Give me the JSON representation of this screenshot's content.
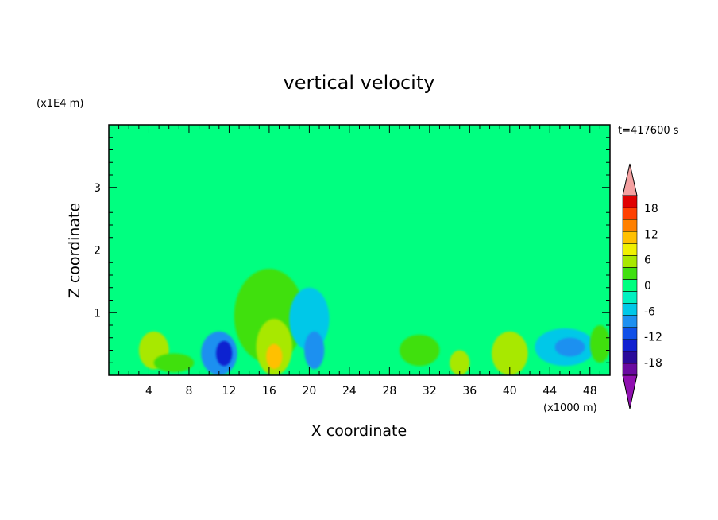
{
  "chart_data": {
    "type": "heatmap",
    "title": "vertical velocity",
    "xlabel": "X coordinate",
    "ylabel": "Z coordinate",
    "x_unit": "(x1000 m)",
    "y_unit": "(x1E4 m)",
    "time_label": "t=417600 s",
    "xlim": [
      0,
      50
    ],
    "ylim": [
      0,
      4
    ],
    "x_ticks": [
      4,
      8,
      12,
      16,
      20,
      24,
      28,
      32,
      36,
      40,
      44,
      48
    ],
    "y_ticks": [
      1,
      2,
      3
    ],
    "colorbar": {
      "levels": [
        -21,
        -18,
        -15,
        -12,
        -9,
        -6,
        -3,
        0,
        3,
        6,
        9,
        12,
        15,
        18,
        21
      ],
      "tick_labels": [
        "18",
        "12",
        "6",
        "0",
        "-6",
        "-12",
        "-18"
      ],
      "tick_values": [
        18,
        12,
        6,
        0,
        -6,
        -12,
        -18
      ],
      "colors": [
        "#6a0aa0",
        "#2a0a9a",
        "#1020d0",
        "#1050e8",
        "#1e90f0",
        "#00c8e8",
        "#00f0c0",
        "#00ff80",
        "#40e010",
        "#a8e800",
        "#f0f000",
        "#ffc000",
        "#ff8000",
        "#ff4000",
        "#e00000"
      ],
      "over_color": "#f4a0a0",
      "under_color": "#9010b0"
    },
    "background_value": 0,
    "features": [
      {
        "x": 8,
        "y": 3.5,
        "rx": 10,
        "ry": 0.35,
        "value": 2
      },
      {
        "x": 28,
        "y": 3.4,
        "rx": 14,
        "ry": 0.5,
        "value": 2
      },
      {
        "x": 30,
        "y": 2.05,
        "rx": 20,
        "ry": 0.15,
        "value": 2
      },
      {
        "x": 32,
        "y": 2.5,
        "rx": 18,
        "ry": 0.08,
        "value": 2
      },
      {
        "x": 14,
        "y": 2.7,
        "rx": 8,
        "ry": 0.1,
        "value": 2
      },
      {
        "x": 16,
        "y": 0.95,
        "rx": 3.5,
        "ry": 0.75,
        "value": 4
      },
      {
        "x": 16.5,
        "y": 0.45,
        "rx": 1.8,
        "ry": 0.45,
        "value": 8
      },
      {
        "x": 16.5,
        "y": 0.3,
        "rx": 0.8,
        "ry": 0.2,
        "value": 12
      },
      {
        "x": 11,
        "y": 0.35,
        "rx": 1.8,
        "ry": 0.35,
        "value": -9
      },
      {
        "x": 11.5,
        "y": 0.35,
        "rx": 0.8,
        "ry": 0.2,
        "value": -15
      },
      {
        "x": 4.5,
        "y": 0.4,
        "rx": 1.5,
        "ry": 0.3,
        "value": 6
      },
      {
        "x": 6.5,
        "y": 0.2,
        "rx": 2,
        "ry": 0.15,
        "value": 4
      },
      {
        "x": 20,
        "y": 0.9,
        "rx": 2,
        "ry": 0.5,
        "value": -4
      },
      {
        "x": 20.5,
        "y": 0.4,
        "rx": 1,
        "ry": 0.3,
        "value": -8
      },
      {
        "x": 31,
        "y": 0.4,
        "rx": 2,
        "ry": 0.25,
        "value": 4
      },
      {
        "x": 35,
        "y": 0.2,
        "rx": 1,
        "ry": 0.2,
        "value": 7
      },
      {
        "x": 40,
        "y": 0.35,
        "rx": 1.8,
        "ry": 0.35,
        "value": 7
      },
      {
        "x": 45.5,
        "y": 0.45,
        "rx": 3,
        "ry": 0.3,
        "value": -5
      },
      {
        "x": 46,
        "y": 0.45,
        "rx": 1.5,
        "ry": 0.15,
        "value": -9
      },
      {
        "x": 49,
        "y": 0.5,
        "rx": 1,
        "ry": 0.3,
        "value": 3
      }
    ]
  }
}
